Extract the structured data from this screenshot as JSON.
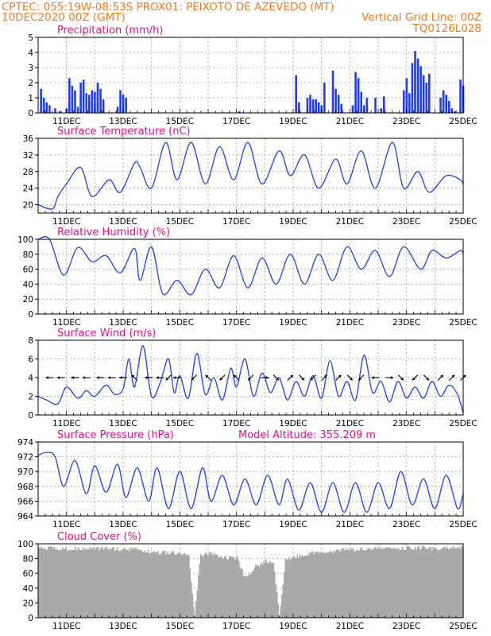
{
  "header": {
    "line1_left": "CPTEC:   055:19W-08:53S   PROX01: PEIXOTO DE AZEVEDO (MT)",
    "line2_left": "10DEC2020 00Z (GMT)",
    "line2_right": "Vertical Grid Line: 00Z",
    "line3_right": "TQ0126L028"
  },
  "colors": {
    "title": "#e0108c",
    "header": "#f07a1c",
    "series": "#1f3df0",
    "cloud": "#a9a9a9",
    "grid": "#9a9a9a"
  },
  "chart_data": [
    {
      "id": "precip",
      "type": "bar",
      "title": "Precipitation (mm/h)",
      "ylim": [
        0,
        5
      ],
      "yticks": [
        0,
        1,
        2,
        3,
        4,
        5
      ],
      "xlabels": [
        "11DEC",
        "13DEC",
        "15DEC",
        "17DEC",
        "19DEC",
        "21DEC",
        "23DEC",
        "25DEC"
      ],
      "x_unit": "days since 10DEC2020 00Z",
      "series": [
        {
          "x": [
            0.1,
            0.2,
            0.3,
            0.4,
            0.6,
            0.8,
            1.0,
            1.1,
            1.2,
            1.3,
            1.4,
            1.5,
            1.6,
            1.7,
            1.8,
            1.9,
            2.0,
            2.1,
            2.2,
            2.3,
            2.8,
            2.9,
            3.0,
            3.1,
            7.1,
            9.1,
            9.2,
            9.5,
            9.6,
            9.7,
            9.8,
            9.9,
            10.0,
            10.1,
            10.4,
            10.5,
            10.6,
            10.7,
            11.1,
            11.2,
            11.3,
            11.4,
            11.5,
            11.6,
            11.9,
            12.1,
            12.2,
            12.9,
            13.0,
            13.1,
            13.2,
            13.3,
            13.4,
            13.5,
            13.6,
            13.7,
            13.8,
            14.2,
            14.3,
            14.4,
            14.5,
            14.6,
            14.7,
            14.9,
            15.0
          ],
          "y": [
            1.6,
            1.0,
            0.7,
            0.5,
            0.3,
            0.1,
            0.3,
            2.3,
            1.8,
            1.5,
            0.4,
            2.0,
            2.2,
            1.3,
            1.2,
            1.5,
            1.4,
            2.0,
            1.6,
            0.9,
            0.4,
            1.5,
            1.2,
            1.0,
            0.1,
            2.5,
            0.7,
            1.0,
            1.2,
            0.9,
            0.9,
            0.7,
            0.5,
            2.0,
            2.8,
            1.6,
            1.2,
            0.6,
            0.5,
            2.7,
            2.3,
            1.4,
            0.5,
            1.0,
            1.0,
            0.3,
            1.1,
            1.5,
            2.3,
            1.3,
            3.3,
            4.1,
            3.6,
            3.1,
            2.5,
            2.0,
            2.6,
            1.0,
            1.5,
            1.2,
            0.8,
            0.3,
            0.1,
            2.2,
            1.8
          ]
        }
      ]
    },
    {
      "id": "temp",
      "type": "line",
      "title": "Surface Temperature (nC)",
      "ylim": [
        18,
        36
      ],
      "yticks": [
        20,
        24,
        28,
        32,
        36
      ],
      "xlabels": [
        "11DEC",
        "13DEC",
        "15DEC",
        "17DEC",
        "19DEC",
        "21DEC",
        "23DEC",
        "25DEC"
      ],
      "series": [
        {
          "x": [
            0,
            0.5,
            0.7,
            1.0,
            1.5,
            1.9,
            2.5,
            2.9,
            3.4,
            3.6,
            4.0,
            4.5,
            4.9,
            5.4,
            5.9,
            6.4,
            6.9,
            7.4,
            7.9,
            8.5,
            8.9,
            9.4,
            9.9,
            10.5,
            10.9,
            11.4,
            11.9,
            12.5,
            12.9,
            13.4,
            13.8,
            14.4,
            14.9,
            15.0
          ],
          "y": [
            20,
            19,
            22,
            25,
            29,
            22,
            26,
            23,
            30,
            29,
            24,
            35,
            26,
            35,
            25,
            34,
            26,
            35,
            25,
            33,
            27,
            32,
            24,
            31,
            25,
            33,
            24,
            35,
            24,
            28,
            23,
            27,
            26,
            25
          ]
        }
      ]
    },
    {
      "id": "rh",
      "type": "line",
      "title": "Relative Humidity (%)",
      "ylim": [
        0,
        100
      ],
      "yticks": [
        0,
        20,
        40,
        60,
        80,
        100
      ],
      "xlabels": [
        "11DEC",
        "13DEC",
        "15DEC",
        "17DEC",
        "19DEC",
        "21DEC",
        "23DEC",
        "25DEC"
      ],
      "series": [
        {
          "x": [
            0,
            0.4,
            0.9,
            1.4,
            1.9,
            2.4,
            2.9,
            3.4,
            3.6,
            4.0,
            4.4,
            4.9,
            5.4,
            5.9,
            6.4,
            6.9,
            7.4,
            7.9,
            8.4,
            8.9,
            9.4,
            9.9,
            10.4,
            10.9,
            11.4,
            11.9,
            12.4,
            12.9,
            13.5,
            13.9,
            14.4,
            14.9,
            15.0
          ],
          "y": [
            100,
            100,
            52,
            89,
            70,
            78,
            55,
            88,
            45,
            90,
            27,
            45,
            26,
            60,
            35,
            78,
            35,
            75,
            40,
            80,
            40,
            80,
            45,
            90,
            60,
            85,
            50,
            90,
            60,
            85,
            75,
            85,
            80
          ]
        }
      ]
    },
    {
      "id": "wind",
      "type": "line",
      "title": "Surface Wind (m/s)",
      "ylim": [
        0,
        8
      ],
      "yticks": [
        0,
        2,
        4,
        6,
        8
      ],
      "xlabels": [
        "11DEC",
        "13DEC",
        "15DEC",
        "17DEC",
        "19DEC",
        "21DEC",
        "23DEC",
        "25DEC"
      ],
      "series": [
        {
          "x": [
            0,
            0.3,
            0.7,
            1.0,
            1.4,
            1.7,
            2.0,
            2.4,
            2.7,
            3.0,
            3.2,
            3.4,
            3.7,
            4.0,
            4.3,
            4.6,
            4.8,
            5.0,
            5.3,
            5.6,
            5.9,
            6.2,
            6.5,
            6.8,
            7.0,
            7.3,
            7.6,
            7.9,
            8.2,
            8.5,
            8.8,
            9.1,
            9.4,
            9.7,
            10.0,
            10.3,
            10.6,
            10.9,
            11.2,
            11.5,
            11.8,
            12.1,
            12.4,
            12.7,
            13.0,
            13.3,
            13.6,
            13.9,
            14.2,
            14.5,
            14.8,
            15.0
          ],
          "y": [
            2.0,
            1.6,
            1.2,
            3.0,
            1.8,
            2.6,
            2.0,
            3.2,
            2.2,
            2.8,
            6.0,
            3.0,
            7.4,
            2.0,
            3.4,
            6.0,
            2.4,
            4.2,
            1.8,
            6.6,
            2.2,
            4.0,
            1.6,
            5.0,
            3.0,
            6.0,
            2.0,
            4.5,
            2.4,
            4.0,
            1.6,
            3.6,
            2.0,
            4.2,
            1.8,
            5.8,
            2.0,
            3.6,
            1.6,
            6.4,
            2.4,
            3.6,
            1.4,
            3.6,
            1.8,
            3.0,
            1.8,
            3.6,
            2.0,
            3.2,
            2.2,
            0.2
          ]
        }
      ],
      "arrows": [
        {
          "x": 0.4,
          "dir": "w"
        },
        {
          "x": 0.8,
          "dir": "w"
        },
        {
          "x": 1.3,
          "dir": "w"
        },
        {
          "x": 1.7,
          "dir": "w"
        },
        {
          "x": 2.2,
          "dir": "w"
        },
        {
          "x": 2.6,
          "dir": "w"
        },
        {
          "x": 3.0,
          "dir": "w"
        },
        {
          "x": 3.4,
          "dir": "nw"
        },
        {
          "x": 3.9,
          "dir": "w"
        },
        {
          "x": 4.3,
          "dir": "w"
        },
        {
          "x": 4.6,
          "dir": "sw"
        },
        {
          "x": 4.9,
          "dir": "w"
        },
        {
          "x": 5.5,
          "dir": "sw"
        },
        {
          "x": 6.0,
          "dir": "nw"
        },
        {
          "x": 6.5,
          "dir": "sw"
        },
        {
          "x": 7.0,
          "dir": "nw"
        },
        {
          "x": 7.5,
          "dir": "sw"
        },
        {
          "x": 8.0,
          "dir": "e"
        },
        {
          "x": 8.4,
          "dir": "se"
        },
        {
          "x": 8.9,
          "dir": "ne"
        },
        {
          "x": 9.3,
          "dir": "se"
        },
        {
          "x": 9.7,
          "dir": "sw"
        },
        {
          "x": 10.1,
          "dir": "ne"
        },
        {
          "x": 10.6,
          "dir": "ne"
        },
        {
          "x": 11.0,
          "dir": "se"
        },
        {
          "x": 11.4,
          "dir": "sw"
        },
        {
          "x": 11.9,
          "dir": "w"
        },
        {
          "x": 12.4,
          "dir": "e"
        },
        {
          "x": 12.8,
          "dir": "se"
        },
        {
          "x": 13.3,
          "dir": "sw"
        },
        {
          "x": 13.7,
          "dir": "se"
        },
        {
          "x": 14.2,
          "dir": "ne"
        },
        {
          "x": 14.6,
          "dir": "ne"
        },
        {
          "x": 15.0,
          "dir": "ne"
        }
      ]
    },
    {
      "id": "press",
      "type": "line",
      "title": "Surface Pressure (hPa)",
      "subtitle": "Model Altitude: 355.209 m",
      "ylim": [
        964,
        974
      ],
      "yticks": [
        964,
        966,
        968,
        970,
        972,
        974
      ],
      "xlabels": [
        "11DEC",
        "13DEC",
        "15DEC",
        "17DEC",
        "19DEC",
        "21DEC",
        "23DEC",
        "25DEC"
      ],
      "series": [
        {
          "x": [
            0,
            0.3,
            0.6,
            0.9,
            1.3,
            1.7,
            2.0,
            2.4,
            2.8,
            3.1,
            3.5,
            3.9,
            4.2,
            4.6,
            5.0,
            5.4,
            5.8,
            6.1,
            6.5,
            6.9,
            7.3,
            7.7,
            8.1,
            8.5,
            8.8,
            9.2,
            9.6,
            10.0,
            10.4,
            10.8,
            11.2,
            11.6,
            12.0,
            12.4,
            12.8,
            13.2,
            13.6,
            14.0,
            14.4,
            14.8,
            15.0
          ],
          "y": [
            972.2,
            972.6,
            972.0,
            968.0,
            971.5,
            967.0,
            970.8,
            967.2,
            971.0,
            966.5,
            970.5,
            966.0,
            970.5,
            965.0,
            970.0,
            965.0,
            970.5,
            966.0,
            969.5,
            965.5,
            969.0,
            965.5,
            969.5,
            965.5,
            969.0,
            964.8,
            968.5,
            964.5,
            968.5,
            964.5,
            968.5,
            964.5,
            968.5,
            965.0,
            970.0,
            965.5,
            969.0,
            965.0,
            969.5,
            965.0,
            967.0
          ]
        }
      ]
    },
    {
      "id": "cloud",
      "type": "area",
      "title": "Cloud Cover (%)",
      "ylim": [
        0,
        100
      ],
      "yticks": [
        0,
        20,
        40,
        60,
        80,
        100
      ],
      "xlabels": [
        "11DEC",
        "13DEC",
        "15DEC",
        "17DEC",
        "19DEC",
        "21DEC",
        "23DEC",
        "25DEC"
      ],
      "series": [
        {
          "x": [
            0,
            0.5,
            1.0,
            1.5,
            2.0,
            2.5,
            3.0,
            3.5,
            4.0,
            4.5,
            5.0,
            5.3,
            5.5,
            5.7,
            6.0,
            6.5,
            7.0,
            7.3,
            7.6,
            8.0,
            8.3,
            8.5,
            8.7,
            9.0,
            9.5,
            10.0,
            10.5,
            11.0,
            11.5,
            12.0,
            12.5,
            13.0,
            13.5,
            14.0,
            14.5,
            15.0
          ],
          "y": [
            97,
            97,
            96,
            97,
            96,
            97,
            95,
            96,
            92,
            91,
            90,
            88,
            2,
            88,
            90,
            85,
            84,
            55,
            70,
            80,
            75,
            5,
            80,
            85,
            90,
            92,
            94,
            95,
            96,
            97,
            96,
            97,
            98,
            97,
            98,
            97
          ]
        }
      ]
    }
  ]
}
